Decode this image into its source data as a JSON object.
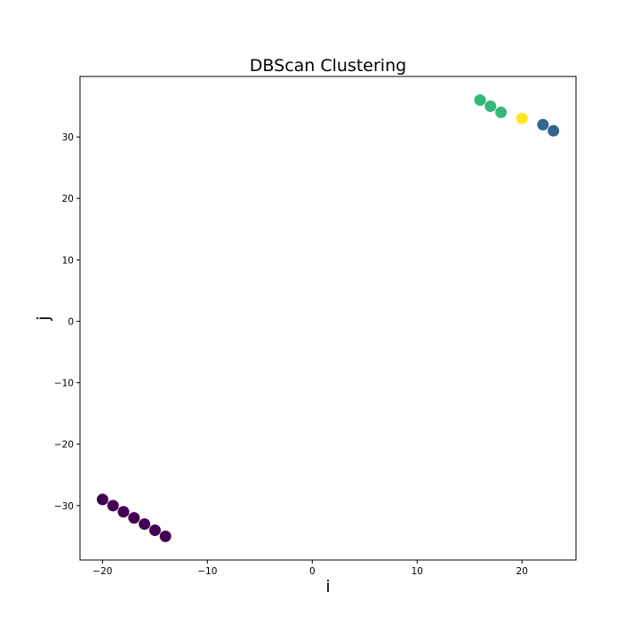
{
  "chart_data": {
    "type": "scatter",
    "title": "DBScan Clustering",
    "xlabel": "i",
    "ylabel": "j",
    "xlim": [
      -22.15,
      25.15
    ],
    "ylim": [
      -38.85,
      39.85
    ],
    "xticks": [
      -20,
      -10,
      0,
      10,
      20
    ],
    "yticks": [
      -30,
      -20,
      -10,
      0,
      10,
      20,
      30
    ],
    "tick_labels": {
      "x": [
        "−20",
        "−10",
        "0",
        "10",
        "20"
      ],
      "y": [
        "−30",
        "−20",
        "−10",
        "0",
        "10",
        "20",
        "30"
      ]
    },
    "grid": false,
    "cluster_colors": {
      "0": "#440154",
      "1": "#31688e",
      "2": "#35b779",
      "3": "#fde725"
    },
    "points": [
      {
        "x": -20,
        "y": -29,
        "cluster": 0
      },
      {
        "x": -19,
        "y": -30,
        "cluster": 0
      },
      {
        "x": -18,
        "y": -31,
        "cluster": 0
      },
      {
        "x": -17,
        "y": -32,
        "cluster": 0
      },
      {
        "x": -16,
        "y": -33,
        "cluster": 0
      },
      {
        "x": -15,
        "y": -34,
        "cluster": 0
      },
      {
        "x": -14,
        "y": -35,
        "cluster": 0
      },
      {
        "x": 16,
        "y": 36,
        "cluster": 2
      },
      {
        "x": 17,
        "y": 35,
        "cluster": 2
      },
      {
        "x": 18,
        "y": 34,
        "cluster": 2
      },
      {
        "x": 20,
        "y": 33,
        "cluster": 3
      },
      {
        "x": 22,
        "y": 32,
        "cluster": 1
      },
      {
        "x": 23,
        "y": 31,
        "cluster": 1
      }
    ]
  }
}
